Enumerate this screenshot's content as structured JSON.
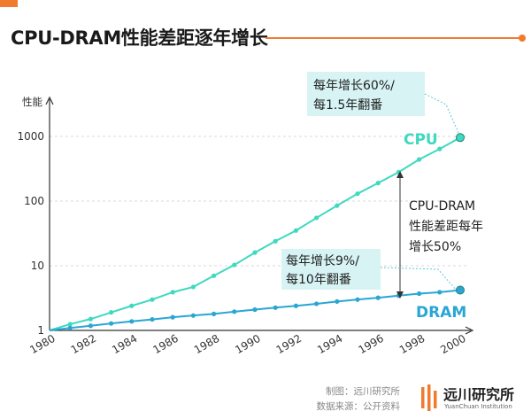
{
  "page": {
    "title": "CPU-DRAM性能差距逐年增长",
    "source_credit": "制图：远川研究所",
    "data_source": "数据来源：公开资料",
    "brand_name": "远川研究所",
    "brand_name_en": "YuanChuan Institution"
  },
  "colors": {
    "accent": "#f07a2e",
    "cpu": "#3ed9c0",
    "dram": "#2aa6d4",
    "annotation_box": "#d7f3f4",
    "axis": "#333333",
    "gridline": "#d9d9d9",
    "leader": "#5bc8d8"
  },
  "chart_data": {
    "type": "line",
    "ylabel": "性能",
    "yscale": "log",
    "ylim": [
      1,
      3000
    ],
    "xlim": [
      1980,
      2000
    ],
    "grid": "horizontal-dashed",
    "x_ticks": [
      "1980",
      "1982",
      "1984",
      "1986",
      "1988",
      "1990",
      "1992",
      "1994",
      "1996",
      "1998",
      "2000"
    ],
    "y_ticks": [
      {
        "value": 1,
        "label": "1"
      },
      {
        "value": 10,
        "label": "10"
      },
      {
        "value": 100,
        "label": "100"
      },
      {
        "value": 1000,
        "label": "1000"
      }
    ],
    "x": [
      1980,
      1981,
      1982,
      1983,
      1984,
      1985,
      1986,
      1987,
      1988,
      1989,
      1990,
      1991,
      1992,
      1993,
      1994,
      1995,
      1996,
      1997,
      1998,
      1999,
      2000
    ],
    "series": [
      {
        "name": "CPU",
        "values": [
          1,
          1.25,
          1.5,
          1.9,
          2.4,
          3.0,
          3.9,
          4.7,
          7.0,
          10.3,
          16,
          24,
          35,
          55,
          85,
          130,
          190,
          280,
          440,
          640,
          960
        ]
      },
      {
        "name": "DRAM",
        "values": [
          1,
          1.09,
          1.18,
          1.28,
          1.38,
          1.48,
          1.6,
          1.7,
          1.8,
          1.95,
          2.1,
          2.25,
          2.4,
          2.58,
          2.8,
          3.0,
          3.2,
          3.45,
          3.7,
          3.9,
          4.2
        ]
      }
    ],
    "annotations": {
      "cpu_growth": [
        "每年增长60%/",
        "每1.5年翻番"
      ],
      "gap": [
        "CPU-DRAM",
        "性能差距每年",
        "增长50%"
      ],
      "dram_growth": [
        "每年增长9%/",
        "每10年翻番"
      ]
    }
  }
}
